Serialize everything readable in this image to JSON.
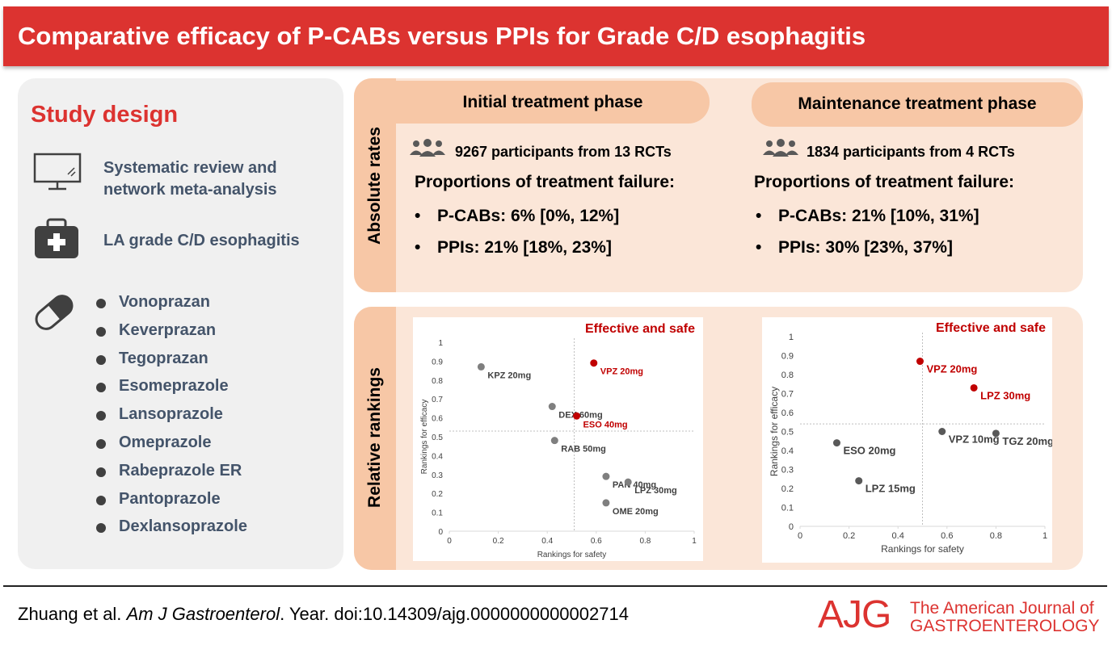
{
  "header": {
    "title": "Comparative efficacy of P-CABs versus PPIs for Grade C/D esophagitis"
  },
  "study_design": {
    "title": "Study design",
    "items": [
      "Systematic review and network meta-analysis",
      "LA grade C/D esophagitis"
    ],
    "drugs": [
      "Vonoprazan",
      "Keverprazan",
      "Tegoprazan",
      "Esomeprazole",
      "Lansoprazole",
      "Omeprazole",
      "Rabeprazole ER",
      "Pantoprazole",
      "Dexlansoprazole"
    ]
  },
  "absolute_rates": {
    "label": "Absolute rates",
    "phases": [
      {
        "title": "Initial treatment phase",
        "participants": "9267 participants from 13 RCTs",
        "subtitle": "Proportions of treatment failure:",
        "bullets": [
          "P-CABs: 6% [0%, 12%]",
          "PPIs: 21% [18%, 23%]"
        ]
      },
      {
        "title": "Maintenance treatment phase",
        "participants": "1834 participants from 4 RCTs",
        "subtitle": "Proportions of treatment failure:",
        "bullets": [
          "P-CABs: 21% [10%, 31%]",
          "PPIs: 30% [23%, 37%]"
        ]
      }
    ]
  },
  "relative_rankings": {
    "label": "Relative rankings"
  },
  "chart_data": [
    {
      "type": "scatter",
      "annotation": "Effective and safe",
      "xlabel": "Rankings for safety",
      "ylabel": "Rankings for efficacy",
      "point_labels": [
        "KPZ 20mg",
        "VPZ 20mg",
        "DEX 60mg",
        "ESO 40mg",
        "RAB 50mg",
        "PAN 40mg",
        "LPZ 30mg",
        "OME 20mg"
      ],
      "x": [
        0.13,
        0.59,
        0.42,
        0.52,
        0.43,
        0.64,
        0.73,
        0.64
      ],
      "values": [
        0.87,
        0.89,
        0.66,
        0.61,
        0.48,
        0.29,
        0.26,
        0.15
      ],
      "point_colors": [
        "#7f7f7f",
        "#c00000",
        "#7f7f7f",
        "#c00000",
        "#7f7f7f",
        "#7f7f7f",
        "#7f7f7f",
        "#7f7f7f"
      ],
      "reference_lines": {
        "x": 0.51,
        "y": 0.53
      },
      "xlim": [
        0,
        1
      ],
      "ylim": [
        0,
        1
      ],
      "xticks": [
        0,
        0.2,
        0.4,
        0.6,
        0.8,
        1
      ],
      "yticks": [
        0,
        0.1,
        0.2,
        0.3,
        0.4,
        0.5,
        0.6,
        0.7,
        0.8,
        0.9,
        1
      ]
    },
    {
      "type": "scatter",
      "annotation": "Effective and safe",
      "xlabel": "Rankings for safety",
      "ylabel": "Rankings for efficacy",
      "point_labels": [
        "VPZ 20mg",
        "LPZ 30mg",
        "ESO 20mg",
        "VPZ 10mg",
        "TGZ 20mg",
        "LPZ 15mg"
      ],
      "x": [
        0.49,
        0.71,
        0.15,
        0.58,
        0.8,
        0.24
      ],
      "values": [
        0.87,
        0.73,
        0.44,
        0.5,
        0.49,
        0.24
      ],
      "point_colors": [
        "#c00000",
        "#c00000",
        "#595959",
        "#595959",
        "#595959",
        "#595959"
      ],
      "reference_lines": {
        "x": 0.5,
        "y": 0.54
      },
      "xlim": [
        0,
        1
      ],
      "ylim": [
        0,
        1
      ],
      "xticks": [
        0,
        0.2,
        0.4,
        0.6,
        0.8,
        1
      ],
      "yticks": [
        0,
        0.1,
        0.2,
        0.3,
        0.4,
        0.5,
        0.6,
        0.7,
        0.8,
        0.9,
        1
      ]
    }
  ],
  "footer": {
    "authors": "Zhuang et al.",
    "journal": "Am J Gastroenterol",
    "rest": ". Year. doi:10.14309/ajg.0000000000002714",
    "logo_mark": "AJG",
    "logo_text": [
      "The American Journal of",
      "GASTROENTEROLOGY"
    ]
  }
}
